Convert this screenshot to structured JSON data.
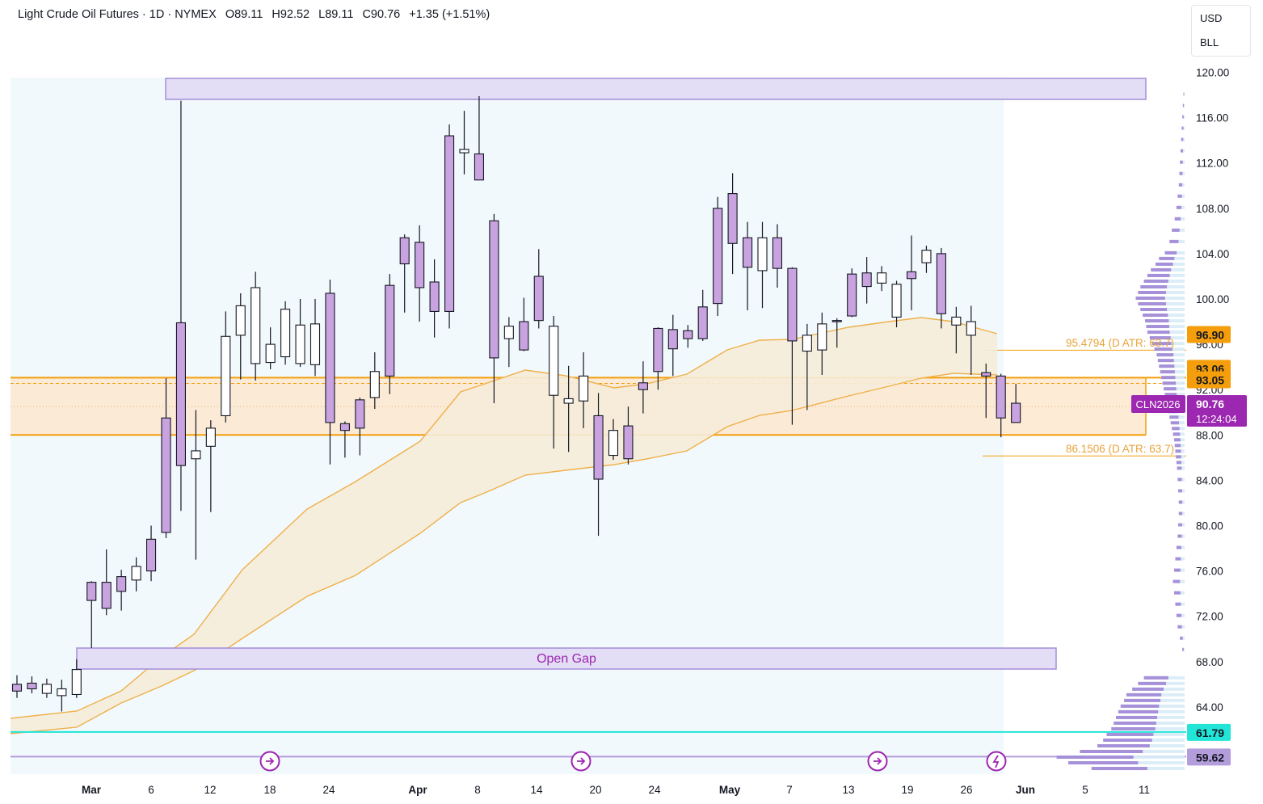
{
  "header": {
    "symbol_name": "Light Crude Oil Futures · 1D · NYMEX",
    "open": "O89.11",
    "high": "H92.52",
    "low": "L89.11",
    "close": "C90.76",
    "change": "+1.35 (+1.51%)"
  },
  "currency": {
    "unit": "USD",
    "volume_unit": "BLL"
  },
  "price_axis": {
    "labels": [
      "120.00",
      "116.00",
      "112.00",
      "108.00",
      "104.00",
      "100.00",
      "96.00",
      "92.00",
      "88.00",
      "84.00",
      "80.00",
      "76.00",
      "72.00",
      "68.00",
      "64.00"
    ]
  },
  "price_tags": [
    {
      "label": "96.90",
      "value": 96.9,
      "bg": "#f59e0b",
      "fg": "#131722"
    },
    {
      "label": "93.06",
      "value": 93.06,
      "bg": "#f59e0b",
      "fg": "#131722"
    },
    {
      "label": "93.05",
      "value": 93.05,
      "bg": "#f59e0b",
      "fg": "#131722"
    },
    {
      "label": "61.79",
      "value": 61.79,
      "bg": "#22e5d8",
      "fg": "#131722"
    },
    {
      "label": "59.62",
      "value": 59.62,
      "bg": "#b39ddb",
      "fg": "#131722"
    }
  ],
  "current_price": {
    "symbol_tag": "CLN2026",
    "price": "90.76",
    "countdown": "12:24:04",
    "value": 90.76,
    "color": "#9c27b0"
  },
  "annotations": {
    "atr_upper": "95.4794 (D ATR: 63.7)",
    "atr_lower": "86.1506 (D ATR: 63.7)",
    "open_gap": "Open Gap"
  },
  "colors": {
    "bull_body": "#ffffff",
    "bear_body": "#c9a3e0",
    "wick": "#131722",
    "orange": "#f59e0b",
    "zone_fill": "#fde7cf",
    "purple_line": "#b39ddb",
    "cyan_line": "#22e5d8",
    "volume_profile": "#9b7fd4"
  },
  "chart_data": {
    "type": "candlestick",
    "x_tick_labels": [
      "Mar",
      "6",
      "12",
      "18",
      "24",
      "Apr",
      "8",
      "14",
      "20",
      "24",
      "May",
      "7",
      "13",
      "19",
      "26",
      "Jun",
      "5",
      "11"
    ],
    "ylim": [
      58,
      121
    ],
    "grid": false,
    "candles": [
      {
        "o": 65.4,
        "h": 66.8,
        "l": 64.8,
        "c": 66.0
      },
      {
        "o": 65.6,
        "h": 66.7,
        "l": 65.2,
        "c": 66.1
      },
      {
        "o": 66.0,
        "h": 66.5,
        "l": 64.8,
        "c": 65.2
      },
      {
        "o": 65.6,
        "h": 66.4,
        "l": 63.6,
        "c": 65.0
      },
      {
        "o": 67.3,
        "h": 68.2,
        "l": 64.8,
        "c": 65.1
      },
      {
        "o": 73.4,
        "h": 75.1,
        "l": 69.2,
        "c": 75.0
      },
      {
        "o": 72.7,
        "h": 77.9,
        "l": 72.1,
        "c": 75.0
      },
      {
        "o": 74.2,
        "h": 76.1,
        "l": 72.5,
        "c": 75.5
      },
      {
        "o": 76.4,
        "h": 77.2,
        "l": 74.2,
        "c": 75.2
      },
      {
        "o": 76.0,
        "h": 80.0,
        "l": 75.1,
        "c": 78.8
      },
      {
        "o": 79.4,
        "h": 93.0,
        "l": 78.9,
        "c": 89.5
      },
      {
        "o": 85.3,
        "h": 117.5,
        "l": 81.3,
        "c": 97.9
      },
      {
        "o": 86.6,
        "h": 90.2,
        "l": 77.0,
        "c": 85.9
      },
      {
        "o": 88.6,
        "h": 89.3,
        "l": 81.2,
        "c": 87.0
      },
      {
        "o": 96.7,
        "h": 98.9,
        "l": 89.1,
        "c": 89.7
      },
      {
        "o": 99.4,
        "h": 100.5,
        "l": 92.9,
        "c": 96.8
      },
      {
        "o": 101.0,
        "h": 102.4,
        "l": 92.8,
        "c": 94.3
      },
      {
        "o": 96.0,
        "h": 97.5,
        "l": 93.8,
        "c": 94.4
      },
      {
        "o": 99.1,
        "h": 99.8,
        "l": 94.2,
        "c": 94.9
      },
      {
        "o": 97.7,
        "h": 100.0,
        "l": 94.0,
        "c": 94.3
      },
      {
        "o": 97.8,
        "h": 100.0,
        "l": 93.2,
        "c": 94.2
      },
      {
        "o": 89.1,
        "h": 101.7,
        "l": 85.4,
        "c": 100.5
      },
      {
        "o": 88.4,
        "h": 89.2,
        "l": 86.0,
        "c": 89.0
      },
      {
        "o": 88.6,
        "h": 91.3,
        "l": 86.2,
        "c": 91.1
      },
      {
        "o": 93.6,
        "h": 95.3,
        "l": 90.3,
        "c": 91.3
      },
      {
        "o": 93.2,
        "h": 102.2,
        "l": 91.6,
        "c": 101.2
      },
      {
        "o": 103.1,
        "h": 105.7,
        "l": 98.8,
        "c": 105.4
      },
      {
        "o": 101.0,
        "h": 106.5,
        "l": 98.0,
        "c": 105.0
      },
      {
        "o": 98.9,
        "h": 103.5,
        "l": 96.6,
        "c": 101.5
      },
      {
        "o": 98.9,
        "h": 115.4,
        "l": 97.4,
        "c": 114.4
      },
      {
        "o": 113.2,
        "h": 116.6,
        "l": 111.0,
        "c": 112.9
      },
      {
        "o": 110.5,
        "h": 117.9,
        "l": 110.7,
        "c": 112.8
      },
      {
        "o": 94.8,
        "h": 107.5,
        "l": 90.8,
        "c": 106.9
      },
      {
        "o": 97.6,
        "h": 98.4,
        "l": 94.0,
        "c": 96.5
      },
      {
        "o": 95.5,
        "h": 100.1,
        "l": 95.4,
        "c": 98.0
      },
      {
        "o": 98.1,
        "h": 104.4,
        "l": 97.4,
        "c": 102.0
      },
      {
        "o": 97.6,
        "h": 98.5,
        "l": 86.8,
        "c": 91.5
      },
      {
        "o": 91.2,
        "h": 94.1,
        "l": 86.5,
        "c": 90.8
      },
      {
        "o": 93.2,
        "h": 95.3,
        "l": 88.6,
        "c": 91.0
      },
      {
        "o": 84.1,
        "h": 91.7,
        "l": 79.1,
        "c": 89.7
      },
      {
        "o": 88.4,
        "h": 89.4,
        "l": 85.8,
        "c": 86.2
      },
      {
        "o": 85.9,
        "h": 90.5,
        "l": 85.4,
        "c": 88.8
      },
      {
        "o": 92.0,
        "h": 94.5,
        "l": 89.9,
        "c": 92.6
      },
      {
        "o": 93.6,
        "h": 97.5,
        "l": 92.0,
        "c": 97.4
      },
      {
        "o": 95.6,
        "h": 98.6,
        "l": 93.2,
        "c": 97.3
      },
      {
        "o": 96.5,
        "h": 97.7,
        "l": 95.7,
        "c": 97.2
      },
      {
        "o": 96.5,
        "h": 100.8,
        "l": 96.3,
        "c": 99.3
      },
      {
        "o": 99.6,
        "h": 109.0,
        "l": 98.5,
        "c": 108.0
      },
      {
        "o": 104.9,
        "h": 111.1,
        "l": 102.2,
        "c": 109.3
      },
      {
        "o": 102.8,
        "h": 106.8,
        "l": 99.0,
        "c": 105.4
      },
      {
        "o": 105.4,
        "h": 106.8,
        "l": 99.2,
        "c": 102.5
      },
      {
        "o": 102.7,
        "h": 106.6,
        "l": 101.0,
        "c": 105.4
      },
      {
        "o": 96.3,
        "h": 102.8,
        "l": 88.9,
        "c": 102.7
      },
      {
        "o": 96.8,
        "h": 97.8,
        "l": 90.2,
        "c": 95.4
      },
      {
        "o": 97.8,
        "h": 98.8,
        "l": 93.3,
        "c": 95.5
      },
      {
        "o": 98.0,
        "h": 98.3,
        "l": 95.7,
        "c": 98.1
      },
      {
        "o": 98.5,
        "h": 102.7,
        "l": 98.4,
        "c": 102.2
      },
      {
        "o": 101.1,
        "h": 103.7,
        "l": 99.6,
        "c": 102.3
      },
      {
        "o": 102.3,
        "h": 102.9,
        "l": 100.7,
        "c": 101.4
      },
      {
        "o": 101.3,
        "h": 101.6,
        "l": 97.5,
        "c": 98.4
      },
      {
        "o": 101.8,
        "h": 105.6,
        "l": 99.0,
        "c": 102.4
      },
      {
        "o": 104.3,
        "h": 104.7,
        "l": 102.3,
        "c": 103.2
      },
      {
        "o": 98.7,
        "h": 104.5,
        "l": 97.4,
        "c": 104.0
      },
      {
        "o": 98.4,
        "h": 99.3,
        "l": 95.2,
        "c": 97.7
      },
      {
        "o": 98.0,
        "h": 99.4,
        "l": 93.3,
        "c": 96.8
      },
      {
        "o": 93.2,
        "h": 94.3,
        "l": 89.5,
        "c": 93.5
      },
      {
        "o": 89.5,
        "h": 93.4,
        "l": 87.8,
        "c": 93.2
      },
      {
        "o": 89.1,
        "h": 92.5,
        "l": 89.1,
        "c": 90.8
      }
    ]
  }
}
